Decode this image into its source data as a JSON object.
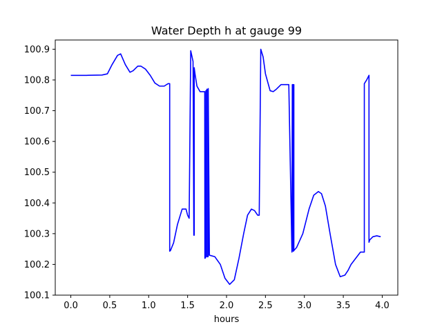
{
  "chart_data": {
    "type": "line",
    "title": "Water Depth h at gauge 99",
    "xlabel": "hours",
    "ylabel": "",
    "xlim": [
      -0.2,
      4.2
    ],
    "ylim": [
      100.1,
      100.93
    ],
    "xticks": [
      0.0,
      0.5,
      1.0,
      1.5,
      2.0,
      2.5,
      3.0,
      3.5,
      4.0
    ],
    "xtick_labels": [
      "0.0",
      "0.5",
      "1.0",
      "1.5",
      "2.0",
      "2.5",
      "3.0",
      "3.5",
      "4.0"
    ],
    "yticks": [
      100.1,
      100.2,
      100.3,
      100.4,
      100.5,
      100.6,
      100.7,
      100.8,
      100.9
    ],
    "ytick_labels": [
      "100.1",
      "100.2",
      "100.3",
      "100.4",
      "100.5",
      "100.6",
      "100.7",
      "100.8",
      "100.9"
    ],
    "grid": false,
    "series": [
      {
        "color": "#0000ff",
        "x": [
          0.0,
          0.2,
          0.4,
          0.47,
          0.53,
          0.6,
          0.64,
          0.7,
          0.76,
          0.8,
          0.86,
          0.9,
          0.96,
          1.02,
          1.08,
          1.14,
          1.2,
          1.23,
          1.25,
          1.27,
          1.27,
          1.28,
          1.32,
          1.37,
          1.43,
          1.48,
          1.5,
          1.52,
          1.54,
          1.54,
          1.57,
          1.58,
          1.585,
          1.585,
          1.595,
          1.62,
          1.66,
          1.7,
          1.72,
          1.722,
          1.725,
          1.735,
          1.735,
          1.742,
          1.75,
          1.75,
          1.762,
          1.765,
          1.765,
          1.78,
          1.85,
          1.92,
          1.98,
          2.04,
          2.1,
          2.16,
          2.22,
          2.27,
          2.32,
          2.36,
          2.4,
          2.42,
          2.44,
          2.44,
          2.47,
          2.5,
          2.56,
          2.6,
          2.64,
          2.7,
          2.76,
          2.8,
          2.84,
          2.84,
          2.845,
          2.855,
          2.855,
          2.86,
          2.865,
          2.865,
          2.9,
          2.98,
          3.06,
          3.12,
          3.18,
          3.22,
          3.27,
          3.33,
          3.4,
          3.46,
          3.52,
          3.56,
          3.6,
          3.66,
          3.72,
          3.77,
          3.77,
          3.8,
          3.83,
          3.83,
          3.84,
          3.88,
          3.93,
          3.98
        ],
        "y": [
          100.815,
          100.815,
          100.816,
          100.82,
          100.85,
          100.88,
          100.885,
          100.85,
          100.825,
          100.83,
          100.845,
          100.845,
          100.835,
          100.815,
          100.79,
          100.78,
          100.78,
          100.785,
          100.788,
          100.788,
          100.243,
          100.245,
          100.27,
          100.33,
          100.38,
          100.38,
          100.36,
          100.35,
          100.895,
          100.895,
          100.86,
          100.295,
          100.295,
          100.84,
          100.82,
          100.78,
          100.762,
          100.762,
          100.762,
          100.22,
          100.22,
          100.225,
          100.765,
          100.765,
          100.77,
          100.225,
          100.225,
          100.228,
          100.772,
          100.23,
          100.225,
          100.2,
          100.155,
          100.135,
          100.15,
          100.22,
          100.3,
          100.36,
          100.38,
          100.375,
          100.36,
          100.36,
          100.9,
          100.9,
          100.875,
          100.82,
          100.765,
          100.762,
          100.77,
          100.785,
          100.785,
          100.785,
          100.24,
          100.24,
          100.785,
          100.785,
          100.243,
          100.243,
          100.785,
          100.245,
          100.255,
          100.3,
          100.38,
          100.425,
          100.437,
          100.43,
          100.39,
          100.3,
          100.2,
          100.16,
          100.165,
          100.18,
          100.2,
          100.22,
          100.24,
          100.24,
          100.788,
          100.8,
          100.815,
          100.272,
          100.28,
          100.29,
          100.293,
          100.29
        ]
      }
    ]
  }
}
